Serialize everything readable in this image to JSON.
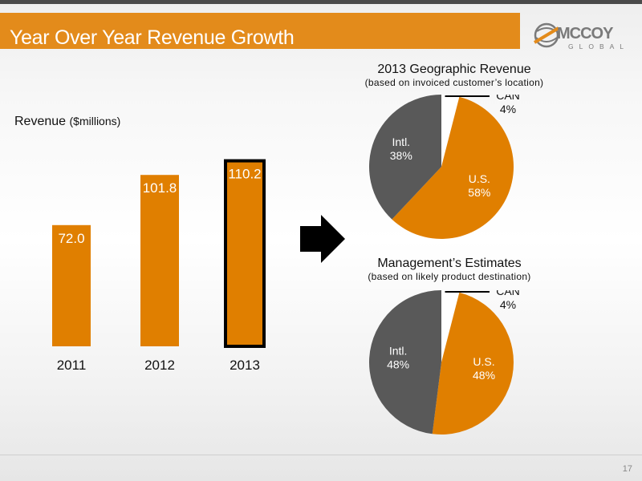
{
  "slide": {
    "title": "Year Over Year Revenue Growth",
    "page_number": "17"
  },
  "logo": {
    "word": "MCCOY",
    "sub": "GLOBAL",
    "colors": {
      "orange": "#e38b1b",
      "gray": "#7a7a7a"
    }
  },
  "revenue_label": {
    "main": "Revenue",
    "unit": "($millions)"
  },
  "chart_data": [
    {
      "type": "bar",
      "categories": [
        "2011",
        "2012",
        "2013"
      ],
      "values": [
        72.0,
        101.8,
        110.2
      ],
      "value_labels": [
        "72.0",
        "101.8",
        "110.2"
      ],
      "highlighted_category": "2013",
      "color": "#e07f00",
      "highlight_border": "#000000"
    },
    {
      "type": "pie",
      "title": "2013 Geographic Revenue",
      "subtitle": "(based on invoiced customer’s location)",
      "slices": [
        {
          "label": "CAN",
          "value": 4,
          "value_label": "4%",
          "color": "#ffffff"
        },
        {
          "label": "U.S.",
          "value": 58,
          "value_label": "58%",
          "color": "#e07f00"
        },
        {
          "label": "Intl.",
          "value": 38,
          "value_label": "38%",
          "color": "#595959"
        }
      ]
    },
    {
      "type": "pie",
      "title": "Management’s Estimates",
      "subtitle": "(based on likely product destination)",
      "slices": [
        {
          "label": "CAN",
          "value": 4,
          "value_label": "4%",
          "color": "#ffffff"
        },
        {
          "label": "U.S.",
          "value": 48,
          "value_label": "48%",
          "color": "#e07f00"
        },
        {
          "label": "Intl.",
          "value": 48,
          "value_label": "48%",
          "color": "#595959"
        }
      ]
    }
  ]
}
